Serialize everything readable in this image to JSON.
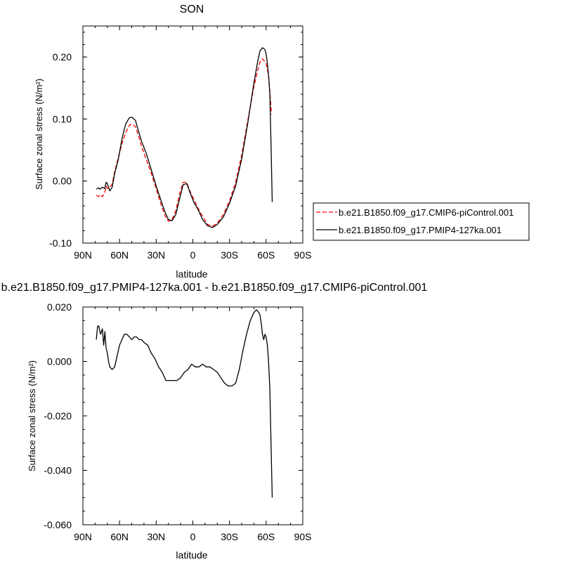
{
  "chart_data": [
    {
      "type": "line",
      "title": "SON",
      "xlabel": "latitude",
      "ylabel": "Surface zonal stress (N/m²)",
      "xlim": [
        90,
        -90
      ],
      "x_tick_values": [
        90,
        60,
        30,
        0,
        -30,
        -60,
        -90
      ],
      "x_tick_labels": [
        "90N",
        "60N",
        "30N",
        "0",
        "30S",
        "60S",
        "90S"
      ],
      "ylim": [
        -0.1,
        0.25
      ],
      "y_tick_values": [
        -0.1,
        0.0,
        0.1,
        0.2
      ],
      "y_tick_labels": [
        "-0.10",
        "0.00",
        "0.10",
        "0.20"
      ],
      "legend_position": "right",
      "series": [
        {
          "name": "b.e21.B1850.f09_g17.CMIP6-piControl.001",
          "color": "#ff0000",
          "dash": "dashed",
          "x": [
            79,
            77,
            76,
            74,
            72,
            71,
            70,
            68,
            66,
            64,
            61,
            58,
            55,
            52,
            50,
            47,
            45,
            42,
            38,
            34,
            30,
            27,
            23,
            20,
            17,
            14,
            11,
            8,
            5,
            2,
            -1,
            -4,
            -8,
            -12,
            -16,
            -20,
            -25,
            -30,
            -35,
            -40,
            -45,
            -50,
            -53,
            -55,
            -57,
            -60,
            -62,
            -63,
            -64,
            -64.5
          ],
          "y": [
            -0.023,
            -0.025,
            -0.022,
            -0.025,
            -0.018,
            -0.008,
            -0.012,
            -0.01,
            -0.005,
            0.015,
            0.038,
            0.06,
            0.078,
            0.09,
            0.092,
            0.088,
            0.076,
            0.056,
            0.034,
            0.012,
            -0.012,
            -0.032,
            -0.055,
            -0.065,
            -0.062,
            -0.048,
            -0.022,
            -0.002,
            -0.002,
            -0.018,
            -0.03,
            -0.043,
            -0.057,
            -0.07,
            -0.073,
            -0.068,
            -0.054,
            -0.032,
            -0.002,
            0.042,
            0.098,
            0.152,
            0.178,
            0.192,
            0.197,
            0.19,
            0.17,
            0.145,
            0.118,
            0.108
          ]
        },
        {
          "name": "b.e21.B1850.f09_g17.PMIP4-127ka.001",
          "color": "#000000",
          "dash": "solid",
          "x": [
            79,
            77,
            76,
            74,
            72,
            71,
            70,
            68,
            66,
            64,
            61,
            58,
            55,
            52,
            50,
            47,
            45,
            42,
            38,
            34,
            30,
            27,
            23,
            20,
            17,
            14,
            11,
            8,
            5,
            2,
            -1,
            -4,
            -8,
            -12,
            -16,
            -20,
            -25,
            -30,
            -35,
            -40,
            -45,
            -50,
            -53,
            -55,
            -57,
            -59,
            -60,
            -61,
            -62,
            -63,
            -64,
            -65
          ],
          "y": [
            -0.013,
            -0.011,
            -0.013,
            -0.01,
            -0.012,
            -0.002,
            -0.004,
            -0.016,
            -0.01,
            0.012,
            0.035,
            0.068,
            0.092,
            0.102,
            0.103,
            0.098,
            0.084,
            0.064,
            0.044,
            0.018,
            -0.008,
            -0.026,
            -0.049,
            -0.062,
            -0.064,
            -0.054,
            -0.03,
            -0.006,
            -0.004,
            -0.02,
            -0.035,
            -0.045,
            -0.062,
            -0.072,
            -0.075,
            -0.07,
            -0.058,
            -0.036,
            -0.008,
            0.036,
            0.094,
            0.158,
            0.192,
            0.21,
            0.215,
            0.212,
            0.205,
            0.19,
            0.17,
            0.14,
            0.06,
            -0.034
          ]
        }
      ]
    },
    {
      "type": "line",
      "title": "b.e21.B1850.f09_g17.PMIP4-127ka.001 - b.e21.B1850.f09_g17.CMIP6-piControl.001",
      "xlabel": "latitude",
      "ylabel": "Surface zonal stress (N/m²)",
      "xlim": [
        90,
        -90
      ],
      "x_tick_values": [
        90,
        60,
        30,
        0,
        -30,
        -60,
        -90
      ],
      "x_tick_labels": [
        "90N",
        "60N",
        "30N",
        "0",
        "30S",
        "60S",
        "90S"
      ],
      "ylim": [
        -0.06,
        0.02
      ],
      "y_tick_values": [
        -0.06,
        -0.04,
        -0.02,
        0.0,
        0.02
      ],
      "y_tick_labels": [
        "-0.060",
        "-0.040",
        "-0.020",
        "0.000",
        "0.020"
      ],
      "series": [
        {
          "name": "",
          "color": "#000000",
          "dash": "solid",
          "x": [
            79,
            78,
            77,
            75.5,
            74,
            73,
            72,
            71,
            70,
            69,
            68,
            66,
            64,
            62,
            60,
            58,
            56,
            54,
            52,
            50,
            48,
            46,
            44,
            42,
            40,
            37,
            34,
            31,
            28,
            25,
            22,
            19,
            16,
            13,
            10,
            7,
            4,
            1,
            -2,
            -5,
            -8,
            -11,
            -14,
            -17,
            -20,
            -23,
            -26,
            -29,
            -32,
            -35,
            -38,
            -41,
            -44,
            -47,
            -50,
            -52,
            -54,
            -55,
            -56,
            -57,
            -58,
            -59,
            -60,
            -61,
            -62,
            -63,
            -64,
            -65
          ],
          "y": [
            0.008,
            0.013,
            0.013,
            0.01,
            0.012,
            0.006,
            0.011,
            0.005,
            0.003,
            0.0,
            -0.002,
            -0.003,
            -0.002,
            0.002,
            0.006,
            0.008,
            0.01,
            0.01,
            0.009,
            0.008,
            0.009,
            0.009,
            0.008,
            0.008,
            0.007,
            0.006,
            0.003,
            0.001,
            -0.002,
            -0.004,
            -0.007,
            -0.007,
            -0.007,
            -0.007,
            -0.006,
            -0.004,
            -0.003,
            -0.001,
            -0.002,
            -0.002,
            -0.001,
            -0.002,
            -0.002,
            -0.003,
            -0.004,
            -0.006,
            -0.008,
            -0.009,
            -0.009,
            -0.008,
            -0.003,
            0.004,
            0.01,
            0.015,
            0.018,
            0.019,
            0.018,
            0.017,
            0.014,
            0.01,
            0.008,
            0.01,
            0.009,
            0.006,
            0.0,
            -0.01,
            -0.03,
            -0.05
          ]
        }
      ]
    }
  ]
}
